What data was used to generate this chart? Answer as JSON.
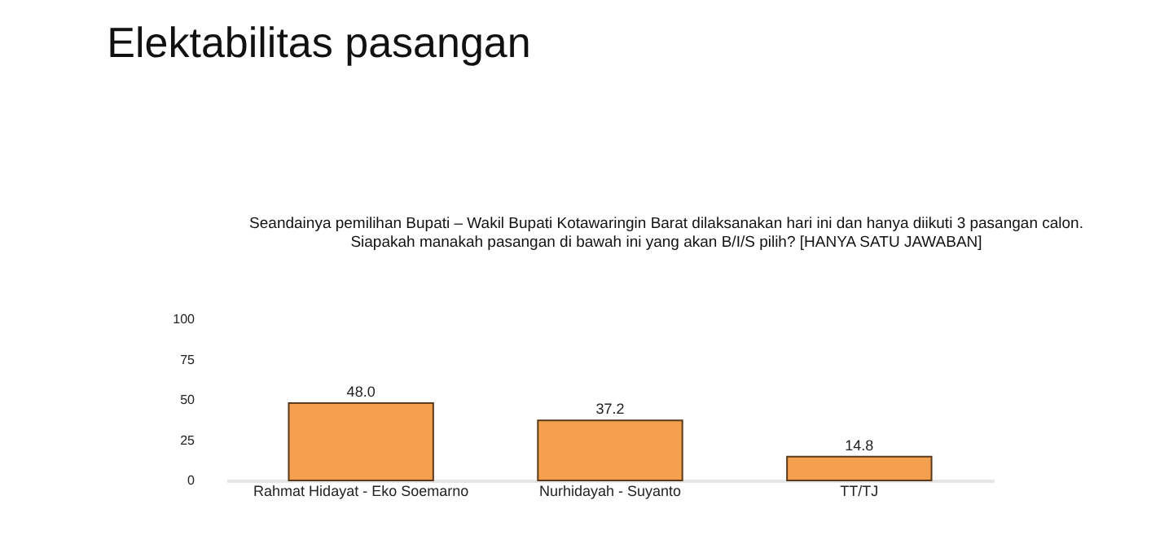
{
  "chart_data": {
    "type": "bar",
    "title": "Elektabilitas pasangan",
    "subtitle": "Seandainya pemilihan Bupati – Wakil Bupati Kotawaringin Barat dilaksanakan hari ini dan hanya diikuti 3 pasangan calon.\nSiapakah manakah pasangan di bawah ini yang akan B/I/S pilih? [HANYA SATU JAWABAN]",
    "categories": [
      "Rahmat Hidayat - Eko Soemarno",
      "Nurhidayah - Suyanto",
      "TT/TJ"
    ],
    "values": [
      48.0,
      37.2,
      14.8
    ],
    "value_labels": [
      "48.0",
      "37.2",
      "14.8"
    ],
    "color": "#f5a04f",
    "ylim": [
      0,
      100
    ],
    "yticks": [
      0,
      25,
      50,
      75,
      100
    ],
    "grid": false
  }
}
